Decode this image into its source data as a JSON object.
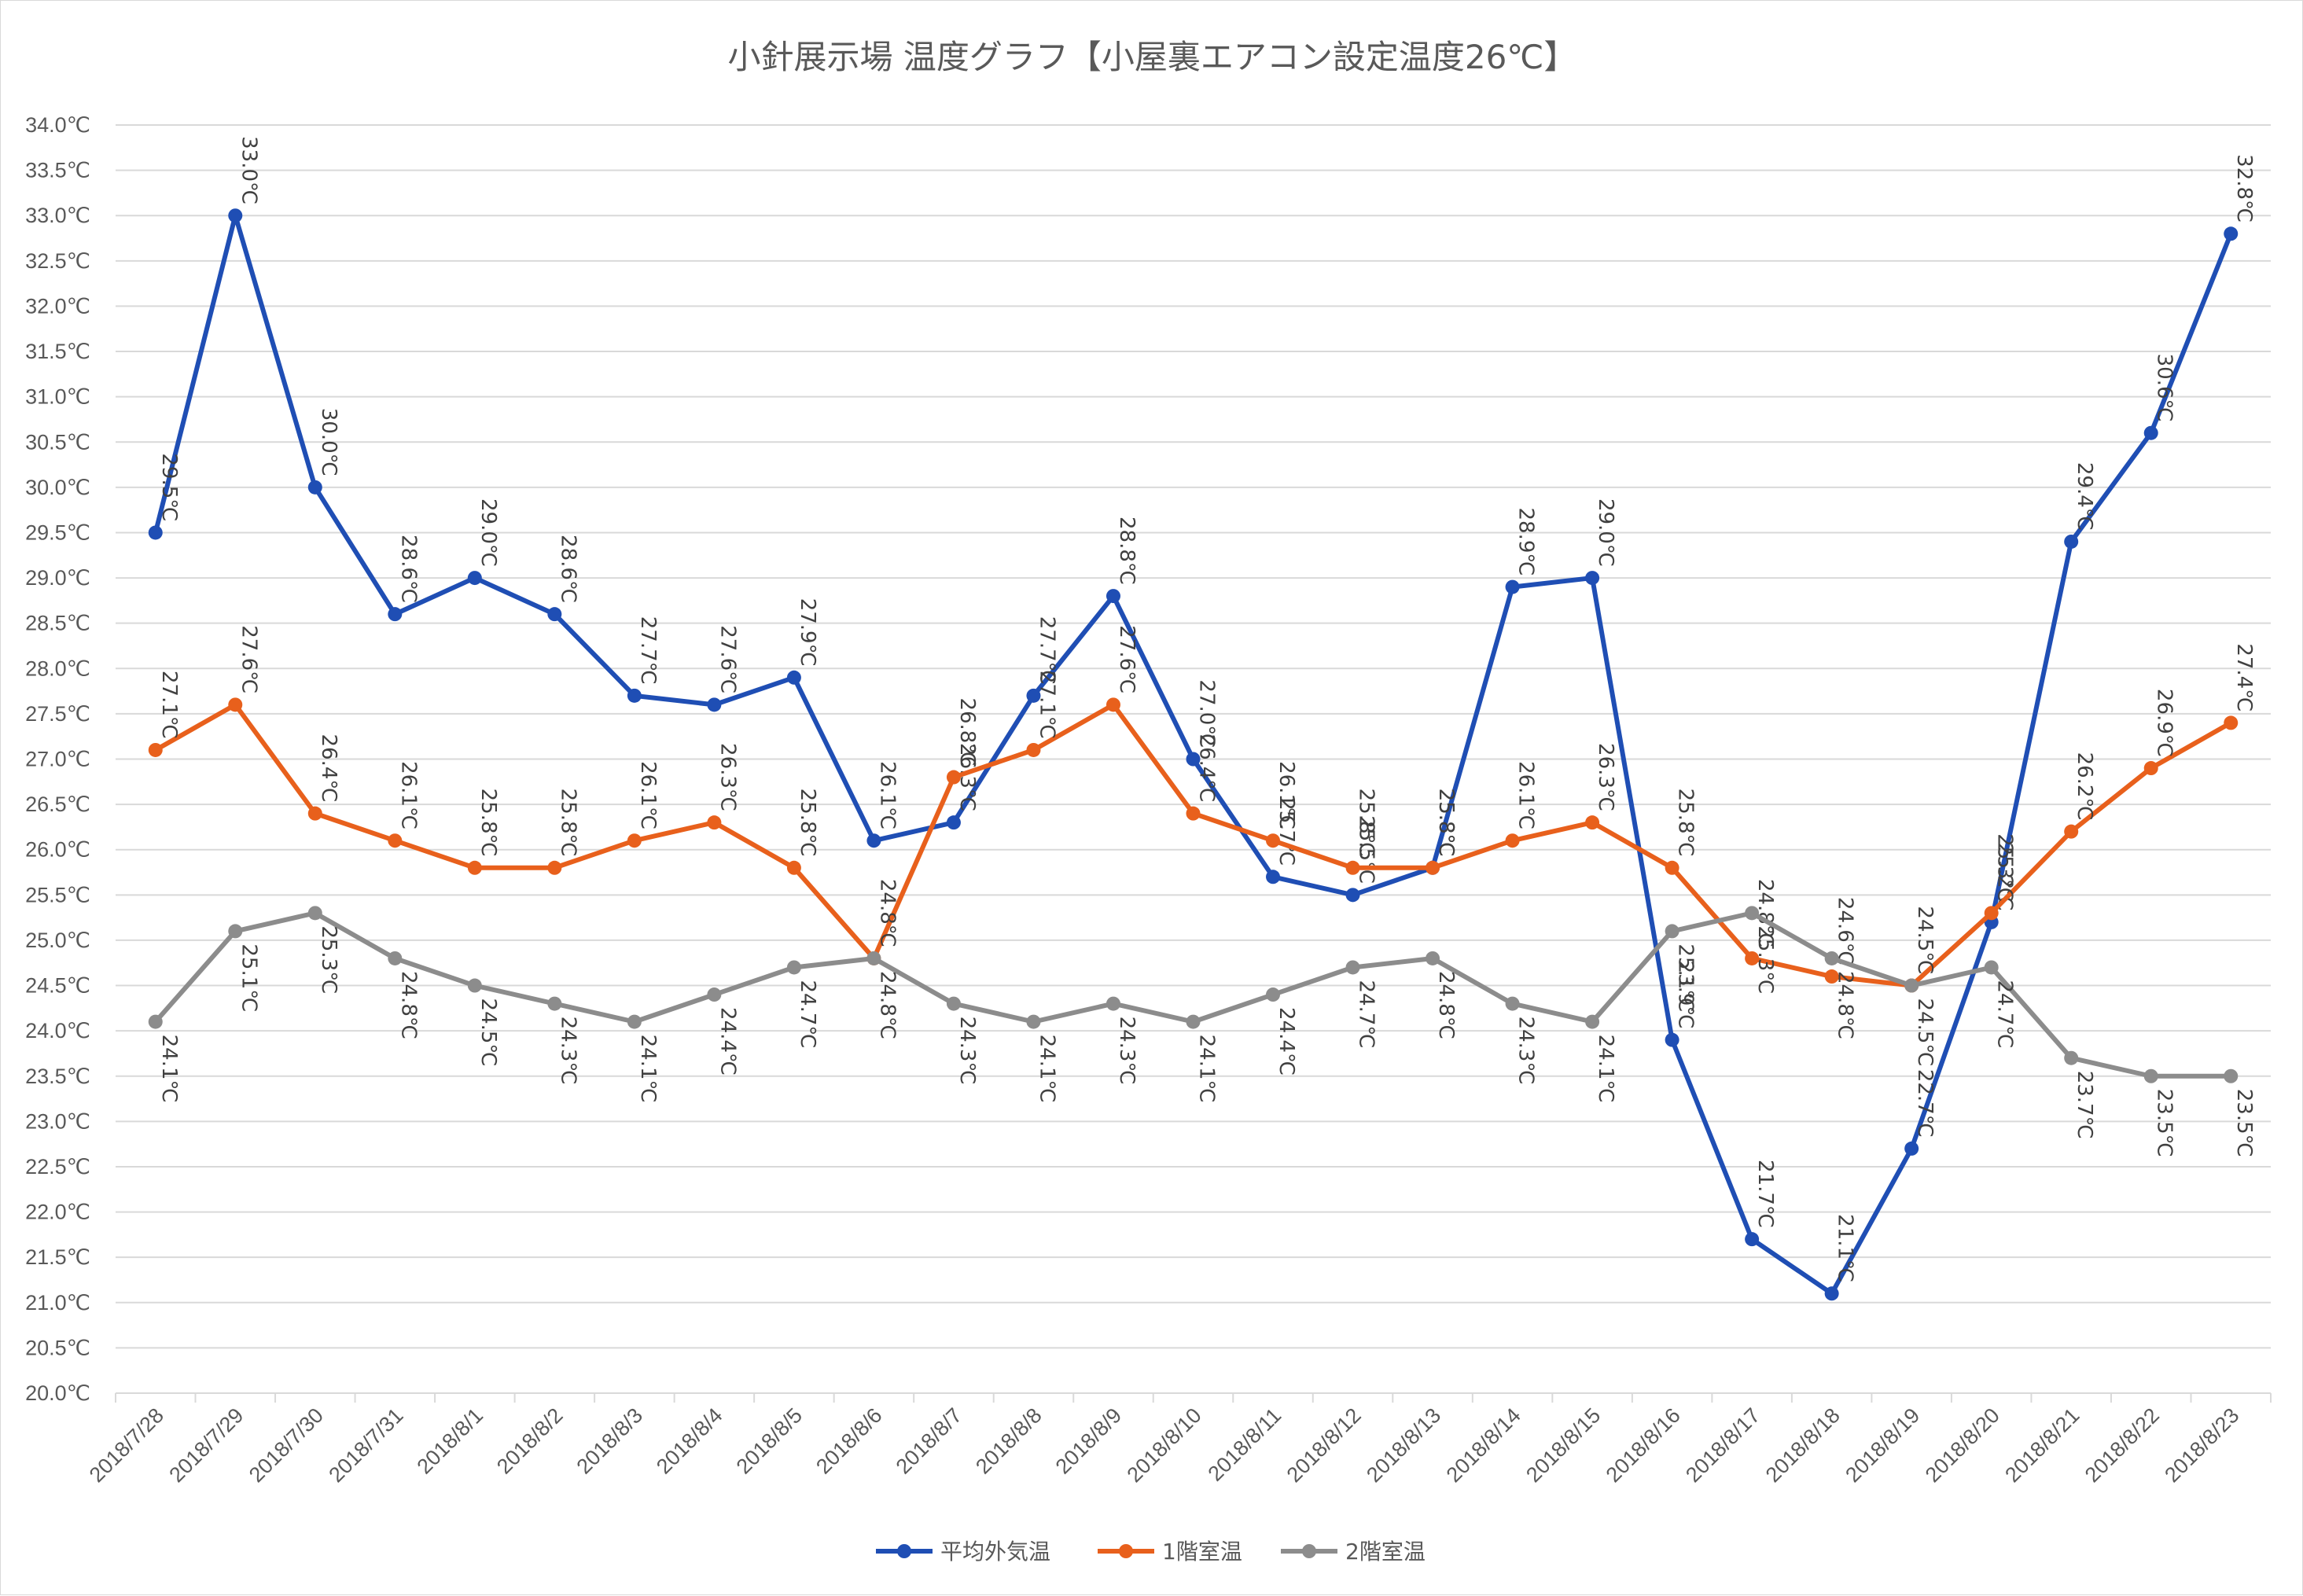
{
  "chart_data": {
    "type": "line",
    "title": "小針展示場 温度グラフ【小屋裏エアコン設定温度26℃】",
    "xlabel": "",
    "ylabel": "",
    "ylim": [
      20.0,
      34.0
    ],
    "ytick_step": 0.5,
    "unit": "℃",
    "grid": "horizontal",
    "legend_position": "bottom",
    "categories": [
      "2018/7/28",
      "2018/7/29",
      "2018/7/30",
      "2018/7/31",
      "2018/8/1",
      "2018/8/2",
      "2018/8/3",
      "2018/8/4",
      "2018/8/5",
      "2018/8/6",
      "2018/8/7",
      "2018/8/8",
      "2018/8/9",
      "2018/8/10",
      "2018/8/11",
      "2018/8/12",
      "2018/8/13",
      "2018/8/14",
      "2018/8/15",
      "2018/8/16",
      "2018/8/17",
      "2018/8/18",
      "2018/8/19",
      "2018/8/20",
      "2018/8/21",
      "2018/8/22",
      "2018/8/23"
    ],
    "series": [
      {
        "name": "平均外気温",
        "color": "#1f4eb4",
        "label_position": "above",
        "values": [
          29.5,
          33.0,
          30.0,
          28.6,
          29.0,
          28.6,
          27.7,
          27.6,
          27.9,
          26.1,
          26.3,
          27.7,
          28.8,
          27.0,
          25.7,
          25.5,
          25.8,
          28.9,
          29.0,
          23.9,
          21.7,
          21.1,
          22.7,
          25.2,
          29.4,
          30.6,
          32.8
        ]
      },
      {
        "name": "1階室温",
        "color": "#e8601c",
        "label_position": "above",
        "values": [
          27.1,
          27.6,
          26.4,
          26.1,
          25.8,
          25.8,
          26.1,
          26.3,
          25.8,
          24.8,
          26.8,
          27.1,
          27.6,
          26.4,
          26.1,
          25.8,
          25.8,
          26.1,
          26.3,
          25.8,
          24.8,
          24.6,
          24.5,
          25.3,
          26.2,
          26.9,
          27.4
        ]
      },
      {
        "name": "2階室温",
        "color": "#8c8c8c",
        "label_position": "below",
        "values": [
          24.1,
          25.1,
          25.3,
          24.8,
          24.5,
          24.3,
          24.1,
          24.4,
          24.7,
          24.8,
          24.3,
          24.1,
          24.3,
          24.1,
          24.4,
          24.7,
          24.8,
          24.3,
          24.1,
          25.1,
          25.3,
          24.8,
          24.5,
          24.7,
          23.7,
          23.5,
          23.5
        ]
      }
    ]
  }
}
